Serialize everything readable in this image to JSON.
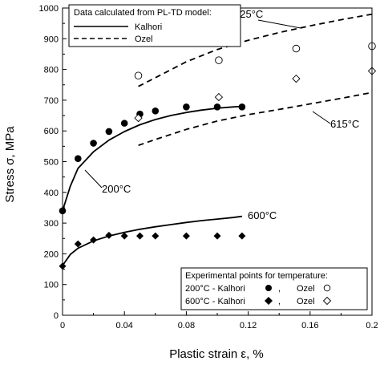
{
  "chart_data": {
    "type": "scatter",
    "xlabel": "Plastic strain ε, %",
    "ylabel": "Stress σ, MPa",
    "xlim": [
      0,
      0.2
    ],
    "ylim": [
      0,
      1000
    ],
    "x_ticks": [
      "0",
      "0.04",
      "0.08",
      "0.12",
      "0.16",
      "0.2"
    ],
    "y_ticks": [
      "0",
      "100",
      "200",
      "300",
      "400",
      "500",
      "600",
      "700",
      "800",
      "900",
      "1000"
    ],
    "grid": false,
    "model_legend": {
      "title": "Data calculated from PL-TD model:",
      "entries": [
        {
          "label": "Kalhori",
          "style": "solid"
        },
        {
          "label": "Ozel",
          "style": "dashed"
        }
      ]
    },
    "experimental_legend": {
      "title": "Experimental points for temperature:",
      "rows": [
        {
          "prefix": "200°C - Kalhori",
          "sep": ",",
          "ozel": "Ozel"
        },
        {
          "prefix": "600°C - Kalhori",
          "sep": ",",
          "ozel": "Ozel"
        }
      ]
    },
    "annotations": {
      "t225": "225°C",
      "t615": "615°C",
      "t200": "200°C",
      "t600": "600°C"
    },
    "series": [
      {
        "style": "solid",
        "temp": "200",
        "x": [
          0,
          0.005,
          0.01,
          0.02,
          0.03,
          0.04,
          0.05,
          0.06,
          0.07,
          0.08,
          0.09,
          0.1,
          0.11,
          0.116
        ],
        "y": [
          340,
          420,
          478,
          532,
          570,
          598,
          620,
          637,
          650,
          660,
          668,
          674,
          678,
          680
        ]
      },
      {
        "style": "solid",
        "temp": "600",
        "x": [
          0,
          0.005,
          0.01,
          0.02,
          0.03,
          0.04,
          0.05,
          0.06,
          0.07,
          0.08,
          0.09,
          0.1,
          0.11,
          0.116
        ],
        "y": [
          162,
          198,
          218,
          242,
          258,
          270,
          280,
          288,
          295,
          302,
          308,
          313,
          318,
          322
        ]
      },
      {
        "style": "dashed",
        "temp": "225",
        "x": [
          0.049,
          0.06,
          0.08,
          0.1,
          0.12,
          0.14,
          0.16,
          0.18,
          0.2
        ],
        "y": [
          745,
          773,
          825,
          865,
          895,
          920,
          942,
          962,
          980
        ]
      },
      {
        "style": "dashed",
        "temp": "615",
        "x": [
          0.049,
          0.06,
          0.08,
          0.1,
          0.12,
          0.14,
          0.16,
          0.18,
          0.2
        ],
        "y": [
          553,
          572,
          605,
          632,
          653,
          670,
          688,
          706,
          725
        ]
      }
    ],
    "points": [
      {
        "marker": "filled-circle",
        "temp": "200",
        "x": [
          0,
          0.01,
          0.02,
          0.03,
          0.04,
          0.05,
          0.06,
          0.08,
          0.1,
          0.116
        ],
        "y": [
          340,
          510,
          560,
          598,
          625,
          655,
          665,
          678,
          678,
          678
        ]
      },
      {
        "marker": "open-circle",
        "temp": "225",
        "x": [
          0.049,
          0.101,
          0.151,
          0.2
        ],
        "y": [
          780,
          830,
          868,
          876
        ]
      },
      {
        "marker": "filled-diamond",
        "temp": "600",
        "x": [
          0,
          0.01,
          0.02,
          0.03,
          0.04,
          0.05,
          0.06,
          0.08,
          0.1,
          0.116
        ],
        "y": [
          160,
          232,
          245,
          260,
          258,
          258,
          258,
          258,
          258,
          258
        ]
      },
      {
        "marker": "open-diamond",
        "temp": "615",
        "x": [
          0.049,
          0.101,
          0.151,
          0.2
        ],
        "y": [
          642,
          710,
          770,
          795
        ]
      }
    ]
  }
}
